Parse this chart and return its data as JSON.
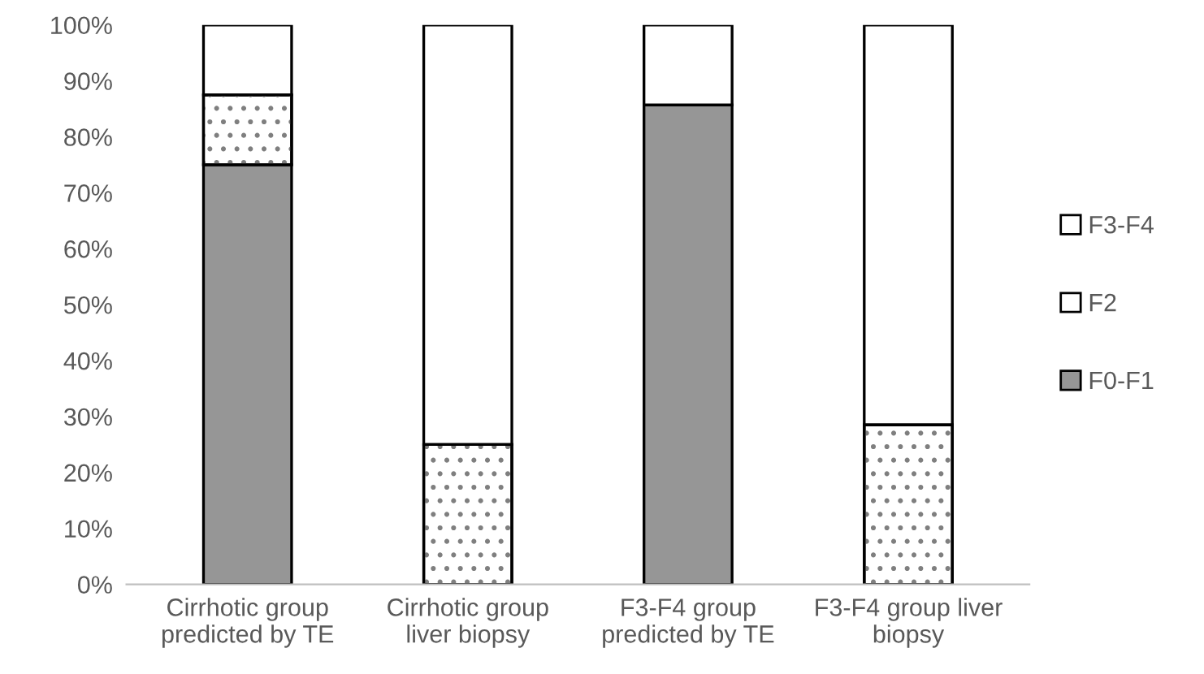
{
  "chart_data": {
    "type": "bar",
    "stacked": true,
    "categories": [
      "Cirrhotic group predicted by TE",
      "Cirrhotic group liver biopsy",
      "F3-F4 group predicted by TE",
      "F3-F4 group liver biopsy"
    ],
    "series": [
      {
        "name": "F0-F1",
        "color": "#969696",
        "values": [
          75,
          0,
          85.7,
          0
        ]
      },
      {
        "name": "F2",
        "color": "#ffffff",
        "values": [
          12.5,
          25,
          0,
          28.5
        ]
      },
      {
        "name": "F3-F4",
        "color": "#ffffff",
        "values": [
          12.5,
          75,
          14.3,
          71.5
        ]
      }
    ],
    "ylim": [
      0,
      100
    ],
    "yticks": [
      {
        "value": 0,
        "label": "0%"
      },
      {
        "value": 10,
        "label": "10%"
      },
      {
        "value": 20,
        "label": "20%"
      },
      {
        "value": 30,
        "label": "30%"
      },
      {
        "value": 40,
        "label": "40%"
      },
      {
        "value": 50,
        "label": "50%"
      },
      {
        "value": 60,
        "label": "60%"
      },
      {
        "value": 70,
        "label": "70%"
      },
      {
        "value": 80,
        "label": "80%"
      },
      {
        "value": 90,
        "label": "90%"
      },
      {
        "value": 100,
        "label": "100%"
      }
    ],
    "grid": false,
    "legend": "right"
  }
}
